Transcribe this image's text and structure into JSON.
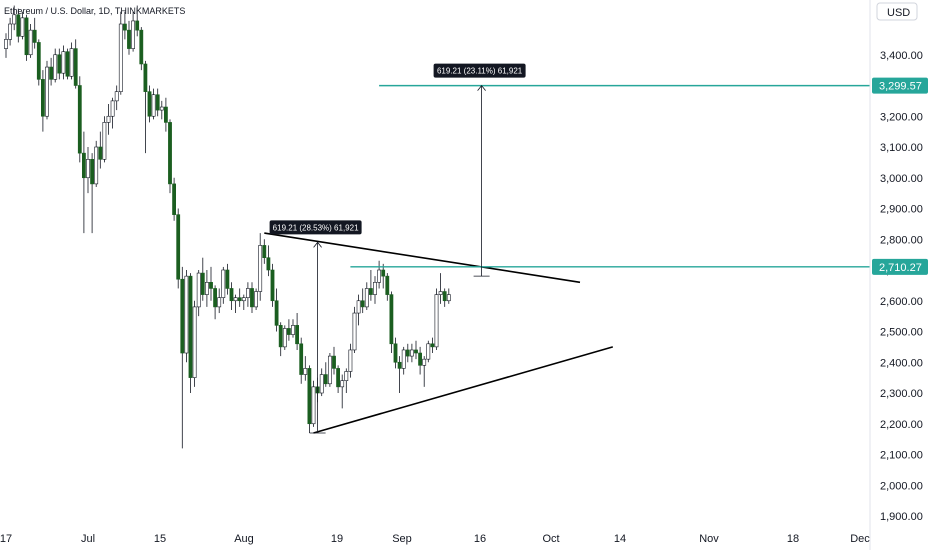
{
  "chart_data": {
    "type": "candlestick",
    "title": "Ethereum / U.S. Dollar, 1D, THINKMARKETS",
    "currency": "USD",
    "colors": {
      "up": "#26a69a",
      "down": "#ef5350",
      "body_up": "#4caf50",
      "body_down": "#1b5e20",
      "wick": "#131722",
      "level": "#26a69a",
      "line": "#000000",
      "tag_bg": "#26a69a",
      "label_bg": "#131722"
    },
    "y_axis": {
      "min": 1900,
      "max": 3550,
      "ticks": [
        1900,
        2000,
        2100,
        2200,
        2300,
        2400,
        2500,
        2600,
        2700,
        2800,
        2900,
        3000,
        3100,
        3200,
        3300,
        3400,
        3500
      ],
      "tick_labels": [
        "1,900.00",
        "2,000.00",
        "2,100.00",
        "2,200.00",
        "2,300.00",
        "2,400.00",
        "2,500.00",
        "2,600.00",
        "2,700.00",
        "2,800.00",
        "2,900.00",
        "3,000.00",
        "3,100.00",
        "3,200.00",
        "3,300.00",
        "3,400.00",
        "3,500.00"
      ]
    },
    "x_axis": {
      "labels": [
        "17",
        "Jul",
        "15",
        "Aug",
        "19",
        "Sep",
        "16",
        "Oct",
        "14",
        "Nov",
        "18",
        "Dec"
      ]
    },
    "candles": [
      [
        3420,
        3470,
        3390,
        3450
      ],
      [
        3450,
        3520,
        3430,
        3500
      ],
      [
        3500,
        3560,
        3480,
        3530
      ],
      [
        3530,
        3550,
        3440,
        3460
      ],
      [
        3460,
        3540,
        3450,
        3520
      ],
      [
        3520,
        3530,
        3380,
        3400
      ],
      [
        3400,
        3500,
        3390,
        3480
      ],
      [
        3480,
        3520,
        3420,
        3440
      ],
      [
        3440,
        3450,
        3300,
        3320
      ],
      [
        3320,
        3350,
        3150,
        3200
      ],
      [
        3200,
        3380,
        3190,
        3360
      ],
      [
        3360,
        3390,
        3300,
        3320
      ],
      [
        3320,
        3420,
        3310,
        3400
      ],
      [
        3400,
        3420,
        3320,
        3340
      ],
      [
        3340,
        3430,
        3320,
        3410
      ],
      [
        3410,
        3420,
        3320,
        3330
      ],
      [
        3330,
        3440,
        3320,
        3420
      ],
      [
        3420,
        3450,
        3290,
        3300
      ],
      [
        3300,
        3330,
        3050,
        3080
      ],
      [
        3080,
        3150,
        2820,
        3000
      ],
      [
        3000,
        3100,
        2950,
        3060
      ],
      [
        3060,
        3080,
        2820,
        2980
      ],
      [
        2980,
        3120,
        2970,
        3100
      ],
      [
        3100,
        3150,
        3030,
        3060
      ],
      [
        3060,
        3200,
        3050,
        3180
      ],
      [
        3180,
        3240,
        3140,
        3200
      ],
      [
        3200,
        3260,
        3160,
        3250
      ],
      [
        3250,
        3300,
        3220,
        3280
      ],
      [
        3280,
        3540,
        3270,
        3500
      ],
      [
        3500,
        3540,
        3450,
        3480
      ],
      [
        3480,
        3510,
        3400,
        3420
      ],
      [
        3420,
        3540,
        3410,
        3510
      ],
      [
        3510,
        3560,
        3460,
        3480
      ],
      [
        3480,
        3490,
        3350,
        3370
      ],
      [
        3370,
        3380,
        3080,
        3280
      ],
      [
        3280,
        3300,
        3180,
        3200
      ],
      [
        3200,
        3290,
        3190,
        3270
      ],
      [
        3270,
        3290,
        3200,
        3220
      ],
      [
        3220,
        3250,
        3190,
        3230
      ],
      [
        3230,
        3260,
        3150,
        3180
      ],
      [
        3180,
        3190,
        2950,
        2980
      ],
      [
        2980,
        3000,
        2860,
        2880
      ],
      [
        2880,
        2900,
        2640,
        2670
      ],
      [
        2670,
        2710,
        2120,
        2430
      ],
      [
        2430,
        2700,
        2400,
        2680
      ],
      [
        2680,
        2690,
        2300,
        2350
      ],
      [
        2350,
        2600,
        2320,
        2580
      ],
      [
        2580,
        2700,
        2550,
        2690
      ],
      [
        2690,
        2740,
        2600,
        2620
      ],
      [
        2620,
        2700,
        2580,
        2660
      ],
      [
        2660,
        2710,
        2600,
        2640
      ],
      [
        2640,
        2650,
        2540,
        2580
      ],
      [
        2580,
        2640,
        2560,
        2610
      ],
      [
        2610,
        2710,
        2590,
        2700
      ],
      [
        2700,
        2720,
        2620,
        2640
      ],
      [
        2640,
        2660,
        2570,
        2600
      ],
      [
        2600,
        2620,
        2560,
        2610
      ],
      [
        2610,
        2640,
        2580,
        2600
      ],
      [
        2600,
        2620,
        2570,
        2610
      ],
      [
        2610,
        2660,
        2580,
        2640
      ],
      [
        2640,
        2660,
        2560,
        2580
      ],
      [
        2580,
        2640,
        2570,
        2630
      ],
      [
        2630,
        2820,
        2600,
        2780
      ],
      [
        2780,
        2800,
        2720,
        2740
      ],
      [
        2740,
        2780,
        2680,
        2700
      ],
      [
        2700,
        2720,
        2580,
        2600
      ],
      [
        2600,
        2640,
        2500,
        2520
      ],
      [
        2520,
        2530,
        2420,
        2450
      ],
      [
        2450,
        2520,
        2440,
        2510
      ],
      [
        2510,
        2540,
        2470,
        2490
      ],
      [
        2490,
        2540,
        2480,
        2520
      ],
      [
        2520,
        2560,
        2440,
        2460
      ],
      [
        2460,
        2480,
        2330,
        2360
      ],
      [
        2360,
        2420,
        2340,
        2380
      ],
      [
        2380,
        2390,
        2170,
        2200
      ],
      [
        2200,
        2340,
        2190,
        2320
      ],
      [
        2320,
        2350,
        2270,
        2300
      ],
      [
        2300,
        2380,
        2290,
        2360
      ],
      [
        2360,
        2400,
        2320,
        2330
      ],
      [
        2330,
        2430,
        2320,
        2420
      ],
      [
        2420,
        2450,
        2360,
        2380
      ],
      [
        2380,
        2390,
        2300,
        2320
      ],
      [
        2320,
        2360,
        2250,
        2340
      ],
      [
        2340,
        2380,
        2300,
        2370
      ],
      [
        2370,
        2460,
        2350,
        2440
      ],
      [
        2440,
        2580,
        2430,
        2560
      ],
      [
        2560,
        2620,
        2520,
        2600
      ],
      [
        2600,
        2640,
        2560,
        2580
      ],
      [
        2580,
        2660,
        2570,
        2640
      ],
      [
        2640,
        2700,
        2600,
        2620
      ],
      [
        2620,
        2680,
        2590,
        2660
      ],
      [
        2660,
        2730,
        2640,
        2700
      ],
      [
        2700,
        2720,
        2640,
        2680
      ],
      [
        2680,
        2690,
        2600,
        2620
      ],
      [
        2620,
        2630,
        2430,
        2460
      ],
      [
        2460,
        2480,
        2380,
        2400
      ],
      [
        2400,
        2420,
        2300,
        2380
      ],
      [
        2380,
        2450,
        2360,
        2440
      ],
      [
        2440,
        2460,
        2400,
        2420
      ],
      [
        2420,
        2460,
        2400,
        2440
      ],
      [
        2440,
        2470,
        2410,
        2430
      ],
      [
        2430,
        2450,
        2360,
        2390
      ],
      [
        2390,
        2420,
        2320,
        2410
      ],
      [
        2410,
        2470,
        2400,
        2460
      ],
      [
        2460,
        2480,
        2430,
        2450
      ],
      [
        2450,
        2640,
        2440,
        2620
      ],
      [
        2620,
        2690,
        2590,
        2630
      ],
      [
        2630,
        2640,
        2580,
        2600
      ],
      [
        2600,
        2640,
        2590,
        2620
      ]
    ],
    "trendlines": [
      {
        "name": "triangle-upper",
        "from": {
          "bar": 63,
          "price": 2820
        },
        "to": {
          "bar": 140,
          "price": 2660
        }
      },
      {
        "name": "triangle-lower",
        "from": {
          "bar": 75,
          "price": 2170
        },
        "to": {
          "bar": 148,
          "price": 2450
        }
      }
    ],
    "horizontal_levels": [
      {
        "name": "target-level",
        "price": 3299.57,
        "from_bar": 91,
        "label": "3,299.57"
      },
      {
        "name": "breakout-level",
        "price": 2710.27,
        "from_bar": 84,
        "label": "2,710.27"
      }
    ],
    "measurements": [
      {
        "name": "measure-1",
        "bar": 76,
        "from_price": 2170,
        "to_price": 2790,
        "label": "619.21 (28.53%) 61,921"
      },
      {
        "name": "measure-2",
        "bar": 116,
        "from_price": 2680,
        "to_price": 3299.57,
        "label": "619.21 (23.11%) 61,921"
      }
    ],
    "grid": false,
    "legend": "none"
  }
}
